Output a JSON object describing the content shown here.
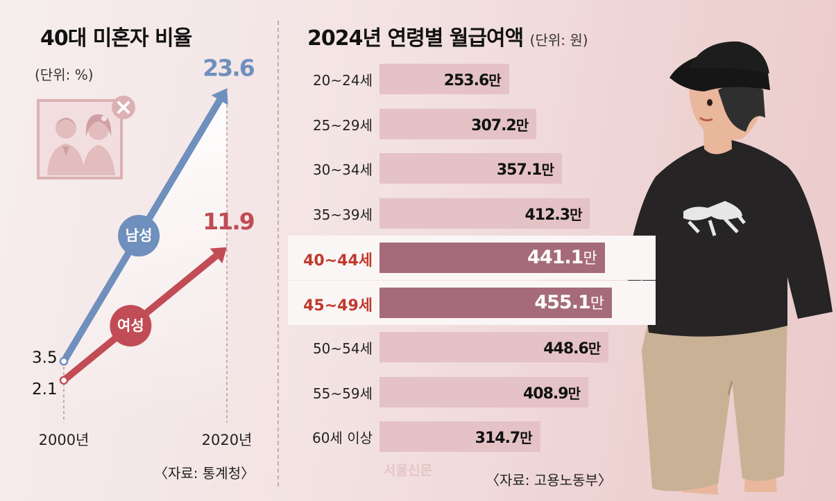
{
  "colors": {
    "male": "#6f8fbd",
    "female": "#c14c55",
    "highlight_bar": "#a56b7b",
    "bar": "#e4c2c5",
    "highlight_label": "#c0392b"
  },
  "left_panel": {
    "title": "40대 미혼자 비율",
    "unit": "(단위: %)",
    "source": "〈자료: 통계청〉",
    "years": [
      "2000년",
      "2020년"
    ],
    "male": {
      "label": "남성",
      "start_label": "3.5",
      "end_label": "23.6"
    },
    "female": {
      "label": "여성",
      "start_label": "2.1",
      "end_label": "11.9"
    }
  },
  "right_panel": {
    "title": "2024년 연령별 월급여액",
    "unit": "(단위: 원)",
    "source": "〈자료: 고용노동부〉",
    "watermark": "서울신문",
    "value_suffix": "만"
  },
  "chart_data": [
    {
      "type": "line",
      "title": "40대 미혼자 비율",
      "ylabel": "단위: %",
      "x": [
        "2000년",
        "2020년"
      ],
      "ylim": [
        0,
        25
      ],
      "series": [
        {
          "name": "남성",
          "values": [
            3.5,
            23.6
          ]
        },
        {
          "name": "여성",
          "values": [
            2.1,
            11.9
          ]
        }
      ]
    },
    {
      "type": "bar",
      "orientation": "horizontal",
      "title": "2024년 연령별 월급여액",
      "unit": "만원",
      "xlim": [
        0,
        500
      ],
      "categories": [
        "20~24세",
        "25~29세",
        "30~34세",
        "35~39세",
        "40~44세",
        "45~49세",
        "50~54세",
        "55~59세",
        "60세 이상"
      ],
      "values": [
        253.6,
        307.2,
        357.1,
        412.3,
        441.1,
        455.1,
        448.6,
        408.9,
        314.7
      ],
      "highlighted": [
        "40~44세",
        "45~49세"
      ]
    }
  ]
}
